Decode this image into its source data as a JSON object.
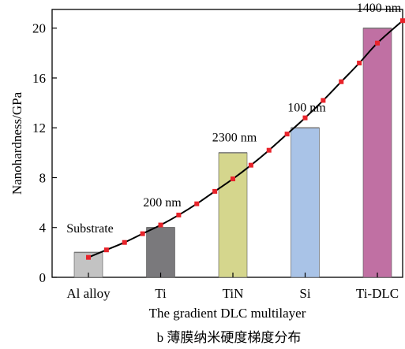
{
  "chart_data": {
    "type": "bar",
    "categories": [
      "Al alloy",
      "Ti",
      "TiN",
      "Si",
      "Ti-DLC"
    ],
    "values": [
      2,
      4,
      10,
      12,
      20
    ],
    "bar_colors": [
      "#c3c3c3",
      "#7a797c",
      "#d5d68d",
      "#a9c3e7",
      "#c070a3"
    ],
    "xlabel": "The gradient DLC multilayer",
    "ylabel": "Nanohardness/GPa",
    "ylim": [
      0,
      21.5
    ],
    "yticks": [
      0,
      4,
      8,
      12,
      16,
      20
    ],
    "grid": false,
    "annotations": [
      {
        "text": "Substrate",
        "category": "Al alloy",
        "y": 3.6
      },
      {
        "text": "200 nm",
        "category": "Ti",
        "y": 5.7
      },
      {
        "text": "2300 nm",
        "category": "TiN",
        "y": 10.9
      },
      {
        "text": "100 nm",
        "category": "Si",
        "y": 13.3
      },
      {
        "text": "1400 nm",
        "category": "Ti-DLC",
        "y": 21.3
      }
    ],
    "trend": {
      "color": "#000000",
      "marker_color": "#e8232a",
      "points": [
        [
          0,
          1.6
        ],
        [
          0.25,
          2.2
        ],
        [
          0.5,
          2.8
        ],
        [
          0.75,
          3.5
        ],
        [
          1,
          4.2
        ],
        [
          1.25,
          5.0
        ],
        [
          1.5,
          5.9
        ],
        [
          1.75,
          6.9
        ],
        [
          2,
          7.9
        ],
        [
          2.25,
          9.0
        ],
        [
          2.5,
          10.2
        ],
        [
          2.75,
          11.5
        ],
        [
          3,
          12.8
        ],
        [
          3.25,
          14.2
        ],
        [
          3.5,
          15.7
        ],
        [
          3.75,
          17.2
        ],
        [
          4,
          18.8
        ],
        [
          4.35,
          20.6
        ]
      ]
    }
  },
  "caption": "b   薄膜纳米硬度梯度分布"
}
